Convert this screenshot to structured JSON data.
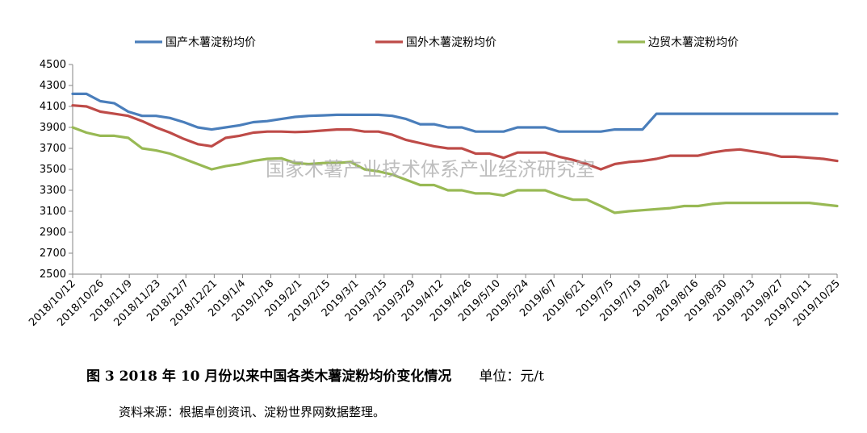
{
  "watermark": "国家木薯产业技术体系产业经济研究室",
  "caption": {
    "title": "图 3   2018 年 10 月份以来中国各类木薯淀粉均价变化情况",
    "unit": "单位：元/t"
  },
  "source": "资料来源：根据卓创资讯、淀粉世界网数据整理。",
  "chart_data": {
    "type": "line",
    "title": "图 3   2018 年 10 月份以来中国各类木薯淀粉均价变化情况",
    "ylabel": "单位：元/t",
    "ylim": [
      2500,
      4500
    ],
    "yticks": [
      2500,
      2700,
      2900,
      3100,
      3300,
      3500,
      3700,
      3900,
      4100,
      4300,
      4500
    ],
    "grid": false,
    "legend": "top",
    "tick_labels": [
      "2018/10/12",
      "2018/10/26",
      "2018/11/9",
      "2018/11/23",
      "2018/12/7",
      "2018/12/21",
      "2019/1/4",
      "2019/1/18",
      "2019/2/1",
      "2019/2/15",
      "2019/3/1",
      "2019/3/15",
      "2019/3/29",
      "2019/4/12",
      "2019/4/26",
      "2019/5/10",
      "2019/5/24",
      "2019/6/7",
      "2019/6/21",
      "2019/7/5",
      "2019/7/19",
      "2019/8/2",
      "2019/8/16",
      "2019/8/30",
      "2019/9/13",
      "2019/9/27",
      "2019/10/11",
      "2019/10/25"
    ],
    "series": [
      {
        "name": "国产木薯淀粉均价",
        "color": "#4a7ebb",
        "values": [
          4220,
          4220,
          4150,
          4130,
          4050,
          4010,
          4010,
          3990,
          3950,
          3900,
          3880,
          3900,
          3920,
          3950,
          3960,
          3980,
          4000,
          4010,
          4015,
          4020,
          4020,
          4020,
          4020,
          4010,
          3980,
          3930,
          3930,
          3900,
          3900,
          3860,
          3860,
          3860,
          3900,
          3900,
          3900,
          3860,
          3860,
          3860,
          3860,
          3880,
          3880,
          3880,
          4030,
          4030,
          4030,
          4030,
          4030,
          4030,
          4030,
          4030,
          4030,
          4030,
          4030,
          4030,
          4030,
          4030
        ]
      },
      {
        "name": "国外木薯淀粉均价",
        "color": "#be4b48",
        "values": [
          4110,
          4100,
          4050,
          4030,
          4010,
          3960,
          3900,
          3850,
          3790,
          3740,
          3720,
          3800,
          3820,
          3850,
          3860,
          3860,
          3855,
          3860,
          3870,
          3880,
          3880,
          3860,
          3860,
          3830,
          3780,
          3750,
          3720,
          3700,
          3700,
          3650,
          3650,
          3610,
          3660,
          3660,
          3660,
          3620,
          3590,
          3550,
          3500,
          3550,
          3570,
          3580,
          3600,
          3630,
          3630,
          3630,
          3660,
          3680,
          3690,
          3670,
          3650,
          3620,
          3620,
          3610,
          3600,
          3580
        ]
      },
      {
        "name": "边贸木薯淀粉均价",
        "color": "#98b954",
        "values": [
          3900,
          3850,
          3820,
          3820,
          3800,
          3700,
          3680,
          3650,
          3600,
          3550,
          3500,
          3530,
          3550,
          3580,
          3600,
          3605,
          3560,
          3550,
          3560,
          3560,
          3570,
          3500,
          3480,
          3450,
          3400,
          3350,
          3350,
          3300,
          3300,
          3270,
          3270,
          3250,
          3300,
          3300,
          3300,
          3250,
          3210,
          3210,
          3150,
          3085,
          3100,
          3110,
          3120,
          3130,
          3150,
          3150,
          3170,
          3180,
          3180,
          3180,
          3180,
          3180,
          3180,
          3180,
          3165,
          3150
        ]
      }
    ]
  }
}
